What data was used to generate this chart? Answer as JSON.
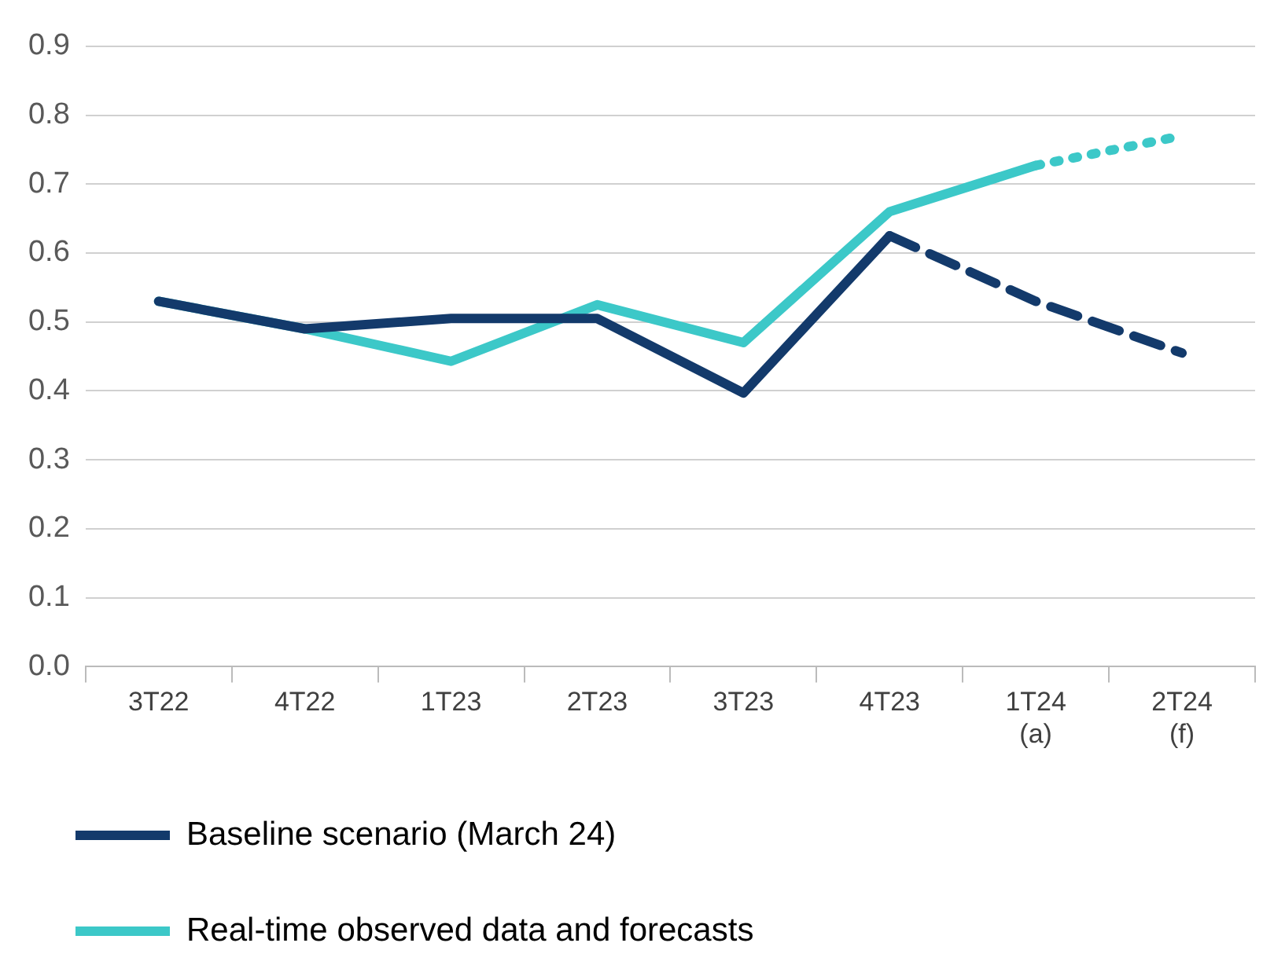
{
  "chart_data": {
    "type": "line",
    "categories": [
      "3T22",
      "4T22",
      "1T23",
      "2T23",
      "3T23",
      "4T23",
      "1T24\n(a)",
      "2T24\n(f)"
    ],
    "series": [
      {
        "name": "Baseline scenario (March 24)",
        "color": "#133a6b",
        "values": [
          0.53,
          0.49,
          0.505,
          0.505,
          0.397,
          0.625,
          null,
          null
        ],
        "line_style": "solid"
      },
      {
        "color": "#133a6b",
        "values": [
          null,
          null,
          null,
          null,
          null,
          0.625,
          0.53,
          0.455
        ],
        "line_style": "dashed"
      },
      {
        "name": "Real-time observed data and forecasts",
        "color": "#3cc8c8",
        "values": [
          0.53,
          0.49,
          0.443,
          0.525,
          0.47,
          0.66,
          0.727,
          null
        ],
        "line_style": "solid"
      },
      {
        "color": "#3cc8c8",
        "values": [
          null,
          null,
          null,
          null,
          null,
          null,
          0.727,
          0.77
        ],
        "line_style": "dotted"
      }
    ],
    "ylim": [
      0,
      0.9
    ],
    "yticks": [
      {
        "value": 0,
        "label": "0.0"
      },
      0.1,
      0.2,
      0.3,
      0.4,
      0.5,
      0.6,
      0.7,
      0.8,
      0.9
    ],
    "grid": "y",
    "legend": "bottom",
    "marker": "none"
  }
}
